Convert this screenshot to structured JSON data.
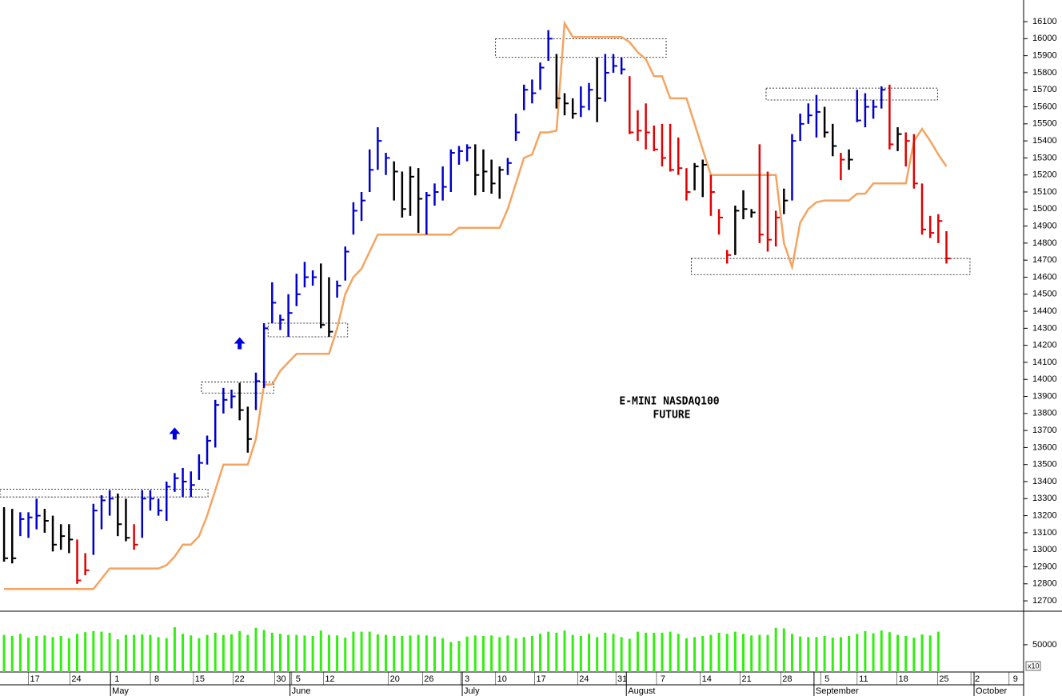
{
  "chart_data": {
    "type": "ohlc",
    "title_lines": [
      "E-MINI NASDAQ100",
      "FUTURE"
    ],
    "xlim": [
      -0.5,
      125.5
    ],
    "xticks": [
      {
        "value": 3.8,
        "label": "17"
      },
      {
        "value": 8.9,
        "label": "24"
      },
      {
        "value": 13.9,
        "label": "1"
      },
      {
        "value": 18.8,
        "label": "8"
      },
      {
        "value": 24.1,
        "label": "15"
      },
      {
        "value": 29.0,
        "label": "22"
      },
      {
        "value": 34.1,
        "label": "30"
      },
      {
        "value": 36.2,
        "label": "5"
      },
      {
        "value": 40.1,
        "label": "12"
      },
      {
        "value": 48.1,
        "label": "20"
      },
      {
        "value": 52.3,
        "label": "26"
      },
      {
        "value": 57.0,
        "label": "3"
      },
      {
        "value": 61.3,
        "label": "10"
      },
      {
        "value": 66.1,
        "label": "17"
      },
      {
        "value": 71.4,
        "label": "24"
      },
      {
        "value": 76.1,
        "label": "31"
      },
      {
        "value": 81.1,
        "label": "7"
      },
      {
        "value": 86.5,
        "label": "14"
      },
      {
        "value": 91.4,
        "label": "21"
      },
      {
        "value": 96.4,
        "label": "28"
      },
      {
        "value": 101.3,
        "label": "5"
      },
      {
        "value": 105.8,
        "label": "11"
      },
      {
        "value": 110.7,
        "label": "18"
      },
      {
        "value": 115.7,
        "label": "25"
      },
      {
        "value": 119.8,
        "label": "2"
      },
      {
        "value": 124.5,
        "label": "9"
      }
    ],
    "months": [
      {
        "value": 13.1,
        "label": "May"
      },
      {
        "value": 35.2,
        "label": "June"
      },
      {
        "value": 56.4,
        "label": "July"
      },
      {
        "value": 76.6,
        "label": "August"
      },
      {
        "value": 99.7,
        "label": "September"
      },
      {
        "value": 119.4,
        "label": "October"
      }
    ],
    "ylim": [
      12644,
      16227
    ],
    "yticks": [
      12700,
      12800,
      12900,
      13000,
      13100,
      13200,
      13300,
      13400,
      13500,
      13600,
      13700,
      13800,
      13900,
      14000,
      14100,
      14200,
      14300,
      14400,
      14500,
      14600,
      14700,
      14800,
      14900,
      15000,
      15100,
      15200,
      15300,
      15400,
      15500,
      15600,
      15700,
      15800,
      15900,
      16000,
      16100
    ],
    "palette": {
      "k": "#000000",
      "b": "#0000cc",
      "r": "#e00000"
    },
    "bar_colors": "kkbbbkkkkrrbbbkkrbbbbbbbbbbbbkkbbbbbbbbkkbbbbbbbkkkkbbbbbbkkkkbbbbbbkkkbbkbbbrrrrrrrrkkrrrkkkrrrkbbbbkkrkbbbbrkrrrrrr",
    "high": [
      13250,
      13240,
      13220,
      13220,
      13300,
      13240,
      13200,
      13150,
      13150,
      13060,
      12980,
      13270,
      13320,
      13350,
      13330,
      13300,
      13150,
      13350,
      13350,
      13300,
      13400,
      13450,
      13480,
      13460,
      13560,
      13670,
      13880,
      13950,
      13940,
      13980,
      13840,
      14040,
      14330,
      14570,
      14380,
      14500,
      14620,
      14690,
      14640,
      14680,
      14600,
      14580,
      14780,
      15040,
      15100,
      15350,
      15480,
      15330,
      15280,
      15220,
      15250,
      15240,
      15100,
      15150,
      15250,
      15350,
      15370,
      15380,
      15380,
      15350,
      15290,
      15250,
      15300,
      15560,
      15730,
      15760,
      15860,
      16050,
      15910,
      15680,
      15650,
      15720,
      15740,
      15890,
      15910,
      15910,
      15890,
      15780,
      15580,
      15620,
      15490,
      15500,
      15500,
      15420,
      15240,
      15270,
      15290,
      15200,
      15000,
      14760,
      15020,
      15110,
      15000,
      15380,
      15220,
      14990,
      15120,
      15440,
      15560,
      15620,
      15670,
      15600,
      15500,
      15330,
      15350,
      15700,
      15680,
      15640,
      15720,
      15730,
      15480,
      15450,
      15440,
      15150,
      14960,
      14970,
      14870
    ],
    "low": [
      12930,
      12920,
      13080,
      13070,
      13120,
      13100,
      12990,
      13000,
      12980,
      12800,
      12850,
      12970,
      13120,
      13200,
      13080,
      13050,
      13000,
      13070,
      13230,
      13200,
      13170,
      13340,
      13310,
      13310,
      13410,
      13500,
      13600,
      13800,
      13830,
      13760,
      13570,
      13820,
      13950,
      14330,
      14290,
      14250,
      14430,
      14540,
      14550,
      14300,
      14250,
      14480,
      14580,
      14850,
      14930,
      15100,
      15230,
      15200,
      15050,
      14950,
      14960,
      14860,
      14850,
      15020,
      15050,
      15100,
      15260,
      15280,
      15080,
      15100,
      15090,
      15060,
      15200,
      15400,
      15580,
      15620,
      15700,
      15870,
      15590,
      15550,
      15530,
      15540,
      15580,
      15510,
      15630,
      15800,
      15790,
      15440,
      15400,
      15350,
      15340,
      15250,
      15220,
      15200,
      15050,
      15110,
      15070,
      14960,
      14850,
      14680,
      14730,
      14940,
      14950,
      14800,
      14750,
      14780,
      14970,
      15050,
      15400,
      15500,
      15420,
      15420,
      15310,
      15170,
      15230,
      15510,
      15480,
      15530,
      15590,
      15350,
      15340,
      15250,
      15120,
      14850,
      14830,
      14800,
      14680
    ],
    "close": [
      12950,
      12950,
      13180,
      13190,
      13200,
      13170,
      13030,
      13080,
      13060,
      12820,
      12880,
      13230,
      13290,
      13300,
      13150,
      13070,
      13030,
      13300,
      13300,
      13230,
      13370,
      13420,
      13400,
      13380,
      13510,
      13640,
      13850,
      13880,
      13900,
      13820,
      13650,
      13990,
      14300,
      14450,
      14350,
      14390,
      14500,
      14600,
      14600,
      14320,
      14280,
      14550,
      14750,
      14990,
      15050,
      15230,
      15400,
      15300,
      15220,
      15000,
      15190,
      15060,
      15080,
      15100,
      15130,
      15330,
      15340,
      15360,
      15200,
      15220,
      15150,
      15230,
      15270,
      15450,
      15700,
      15680,
      15830,
      16000,
      15650,
      15620,
      15560,
      15600,
      15700,
      15650,
      15800,
      15840,
      15820,
      15450,
      15460,
      15450,
      15350,
      15300,
      15230,
      15240,
      15100,
      15250,
      15260,
      15100,
      14950,
      14730,
      14990,
      15000,
      14980,
      14850,
      14820,
      14950,
      15050,
      15400,
      15500,
      15550,
      15570,
      15450,
      15370,
      15290,
      15290,
      15520,
      15600,
      15600,
      15700,
      15380,
      15440,
      15400,
      15150,
      14880,
      14860,
      14930,
      14710
    ],
    "stop": {
      "color": "#f4a460",
      "values": [
        12770,
        12770,
        12770,
        12770,
        12770,
        12770,
        12770,
        12770,
        12770,
        12770,
        12770,
        12770,
        12830,
        12890,
        12890,
        12890,
        12890,
        12890,
        12890,
        12890,
        12910,
        12960,
        13030,
        13030,
        13080,
        13200,
        13350,
        13500,
        13500,
        13500,
        13500,
        13650,
        13970,
        13970,
        14050,
        14100,
        14150,
        14150,
        14150,
        14150,
        14150,
        14300,
        14500,
        14600,
        14650,
        14750,
        14850,
        14850,
        14850,
        14850,
        14850,
        14850,
        14850,
        14850,
        14850,
        14850,
        14890,
        14890,
        14890,
        14890,
        14890,
        14890,
        15000,
        15150,
        15300,
        15320,
        15450,
        15450,
        15460,
        16090,
        16010,
        16010,
        16010,
        16010,
        16010,
        16010,
        16010,
        15980,
        15920,
        15880,
        15780,
        15780,
        15650,
        15650,
        15650,
        15500,
        15350,
        15200,
        15200,
        15200,
        15200,
        15200,
        15200,
        15200,
        15200,
        15200,
        14800,
        14660,
        14920,
        15000,
        15040,
        15050,
        15050,
        15050,
        15050,
        15090,
        15090,
        15150,
        15150,
        15150,
        15150,
        15150,
        15400,
        15470,
        15400,
        15320,
        15250
      ]
    },
    "boxes": [
      {
        "x": [
          -0.5,
          25.1
        ],
        "y": [
          13310,
          13355
        ]
      },
      {
        "x": [
          24.3,
          33.2
        ],
        "y": [
          13920,
          13985
        ]
      },
      {
        "x": [
          32.5,
          42.3
        ],
        "y": [
          14250,
          14330
        ]
      },
      {
        "x": [
          60.5,
          81.5
        ],
        "y": [
          15890,
          16000
        ]
      },
      {
        "x": [
          93.8,
          114.9
        ],
        "y": [
          15640,
          15710
        ]
      },
      {
        "x": [
          84.6,
          118.9
        ],
        "y": [
          14615,
          14710
        ]
      }
    ],
    "arrows": {
      "color": "#0000dd",
      "x": [
        21,
        29
      ],
      "y": [
        13680,
        14210
      ]
    },
    "volume": {
      "color": "#33ee11",
      "ylim": [
        0,
        110000
      ],
      "yticks": [
        50000
      ],
      "unit": "x10",
      "values": [
        68000,
        66000,
        70000,
        63000,
        66000,
        67000,
        64000,
        66000,
        62000,
        70000,
        73000,
        75000,
        74000,
        72000,
        60000,
        68000,
        68000,
        69000,
        68000,
        64000,
        62000,
        82000,
        70000,
        67000,
        62000,
        68000,
        72000,
        68000,
        69000,
        75000,
        68000,
        81000,
        77000,
        72000,
        70000,
        68000,
        68000,
        67000,
        66000,
        76000,
        68000,
        67000,
        63000,
        74000,
        74000,
        74000,
        69000,
        68000,
        66000,
        66000,
        67000,
        68000,
        67000,
        65000,
        62000,
        55000,
        57000,
        65000,
        67000,
        66000,
        67000,
        64000,
        67000,
        62000,
        64000,
        66000,
        70000,
        74000,
        72000,
        76000,
        68000,
        66000,
        70000,
        64000,
        72000,
        70000,
        64000,
        61000,
        74000,
        72000,
        72000,
        72000,
        74000,
        70000,
        62000,
        64000,
        66000,
        68000,
        72000,
        70000,
        74000,
        70000,
        67000,
        68000,
        68000,
        81000,
        80000,
        70000,
        65000,
        64000,
        64000,
        66000,
        63000,
        64000,
        66000,
        70000,
        75000,
        71000,
        76000,
        73000,
        68000,
        66000,
        63000,
        69000,
        67000,
        74000,
        null
      ]
    }
  }
}
